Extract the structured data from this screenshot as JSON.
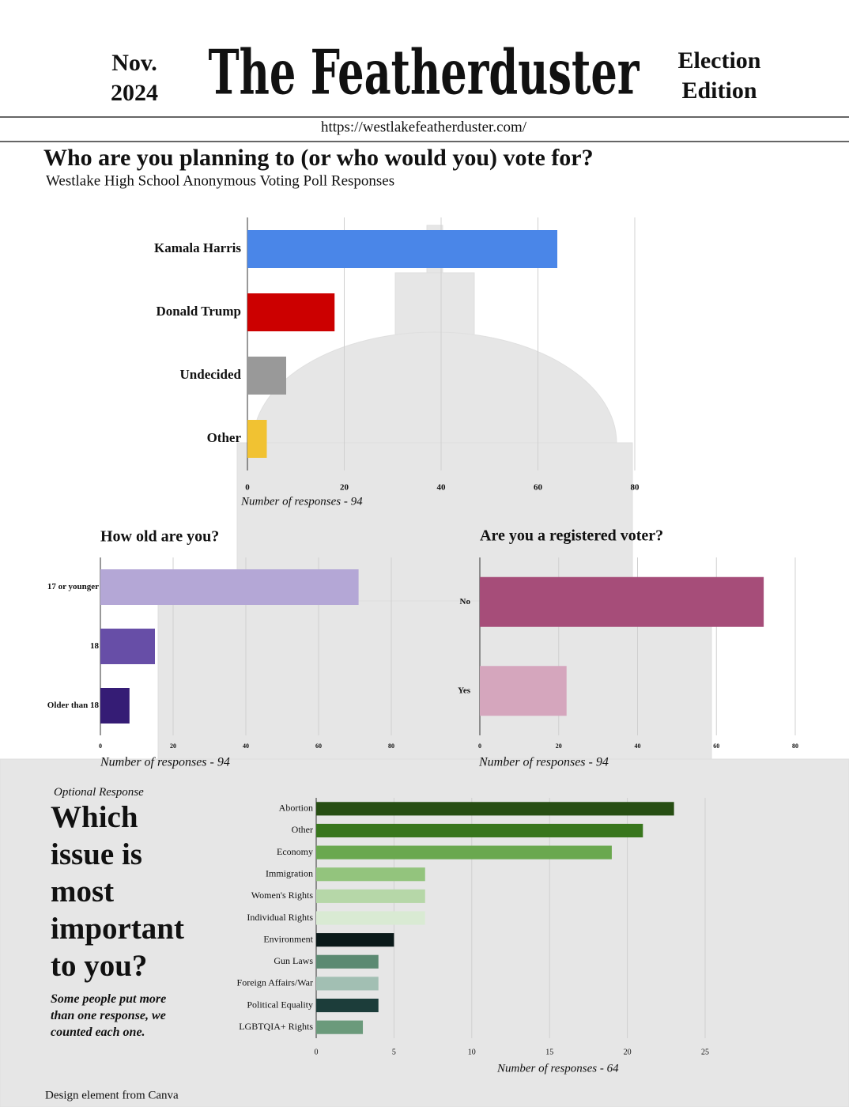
{
  "header": {
    "date_lines": [
      "Nov.",
      "2024"
    ],
    "masthead": "The Featherduster",
    "edition_lines": [
      "Election",
      "Edition"
    ],
    "url": "https://westlakefeatherduster.com/"
  },
  "chart_data": [
    {
      "type": "hbar",
      "title": "Who are you planning to (or who would you) vote for?",
      "subtitle": "Westlake High School Anonymous Voting Poll Responses",
      "x_label": "Number of responses - 94",
      "categories": [
        "Kamala Harris",
        "Donald Trump",
        "Undecided",
        "Other"
      ],
      "values": [
        64,
        18,
        8,
        4
      ],
      "colors": [
        "#4a86e8",
        "#cc0000",
        "#999999",
        "#f1c232"
      ],
      "xlim": [
        0,
        80
      ],
      "xticks": [
        0,
        20,
        40,
        60,
        80
      ],
      "grid": true
    },
    {
      "type": "hbar",
      "title": "How old are you?",
      "x_label": "Number of responses - 94",
      "categories": [
        "17 or younger",
        "18",
        "Older than 18"
      ],
      "values": [
        71,
        15,
        8
      ],
      "colors": [
        "#b4a7d6",
        "#674ea7",
        "#351c75"
      ],
      "xlim": [
        0,
        80
      ],
      "xticks": [
        0,
        20,
        40,
        60,
        80
      ],
      "grid": true
    },
    {
      "type": "hbar",
      "title": "Are you a registered voter?",
      "x_label": "Number of responses - 94",
      "categories": [
        "No",
        "Yes"
      ],
      "values": [
        72,
        22
      ],
      "colors": [
        "#a64d79",
        "#d5a6bd"
      ],
      "xlim": [
        0,
        80
      ],
      "xticks": [
        0,
        20,
        40,
        60,
        80
      ],
      "grid": true
    },
    {
      "type": "hbar",
      "kicker": "Optional Response",
      "title": "Which issue is most important to you?",
      "note": "Some people put more than one response, we counted each one.",
      "x_label": "Number of responses - 64",
      "categories": [
        "Abortion",
        "Other",
        "Economy",
        "Immigration",
        "Women's Rights",
        "Individual Rights",
        "Environment",
        "Gun Laws",
        "Foreign Affairs/War",
        "Political Equality",
        "LGBTQIA+ Rights"
      ],
      "values": [
        23,
        21,
        19,
        7,
        7,
        7,
        5,
        4,
        4,
        4,
        3
      ],
      "colors": [
        "#274e13",
        "#38761d",
        "#6aa84f",
        "#93c47d",
        "#b6d7a8",
        "#d9ead3",
        "#0b1a1a",
        "#5b8a72",
        "#a2bfb3",
        "#1c3d3a",
        "#6b9a7b"
      ],
      "xlim": [
        0,
        25
      ],
      "xticks": [
        0,
        5,
        10,
        15,
        20,
        25
      ],
      "grid": true
    }
  ],
  "footer": "Design element from Canva"
}
